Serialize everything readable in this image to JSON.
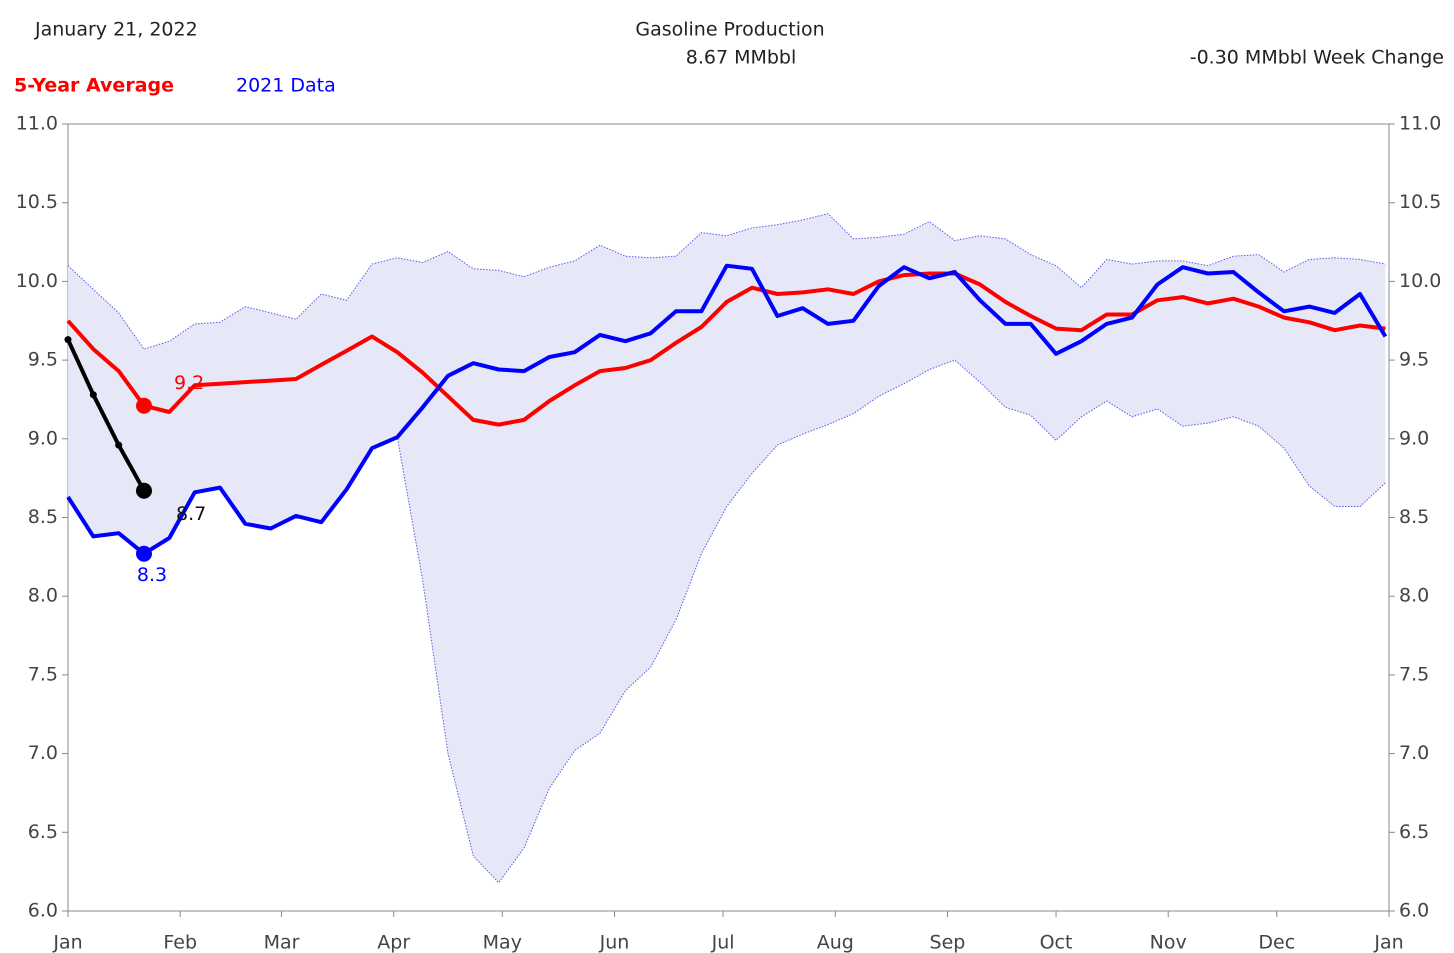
{
  "chart_data": {
    "type": "line",
    "date": "January 21, 2022",
    "title": "Gasoline Production",
    "subtitle": "8.67 MMbbl",
    "annotation": "-0.30 MMbbl Week Change",
    "xlim": [
      0,
      365
    ],
    "xticks": [
      {
        "value": 0,
        "label": "Jan"
      },
      {
        "value": 31,
        "label": "Feb"
      },
      {
        "value": 59,
        "label": "Mar"
      },
      {
        "value": 90,
        "label": "Apr"
      },
      {
        "value": 120,
        "label": "May"
      },
      {
        "value": 151,
        "label": "Jun"
      },
      {
        "value": 181,
        "label": "Jul"
      },
      {
        "value": 212,
        "label": "Aug"
      },
      {
        "value": 243,
        "label": "Sep"
      },
      {
        "value": 273,
        "label": "Oct"
      },
      {
        "value": 304,
        "label": "Nov"
      },
      {
        "value": 334,
        "label": "Dec"
      },
      {
        "value": 365,
        "label": "Jan"
      }
    ],
    "ylim": [
      6,
      11
    ],
    "yticks": [
      {
        "value": 6,
        "label": "6.0"
      },
      {
        "value": 6.5,
        "label": "6.5"
      },
      {
        "value": 7,
        "label": "7.0"
      },
      {
        "value": 7.5,
        "label": "7.5"
      },
      {
        "value": 8,
        "label": "8.0"
      },
      {
        "value": 8.5,
        "label": "8.5"
      },
      {
        "value": 9,
        "label": "9.0"
      },
      {
        "value": 9.5,
        "label": "9.5"
      },
      {
        "value": 10,
        "label": "10.0"
      },
      {
        "value": 10.5,
        "label": "10.5"
      },
      {
        "value": 11,
        "label": "11.0"
      }
    ],
    "x": [
      0,
      7,
      14,
      21,
      28,
      35,
      42,
      49,
      56,
      63,
      70,
      77,
      84,
      91,
      98,
      105,
      112,
      119,
      126,
      133,
      140,
      147,
      154,
      161,
      168,
      175,
      182,
      189,
      196,
      203,
      210,
      217,
      224,
      231,
      238,
      245,
      252,
      259,
      266,
      273,
      280,
      287,
      294,
      301,
      308,
      315,
      322,
      329,
      336,
      343,
      350,
      357,
      364
    ],
    "range": {
      "color": "#e6e8f7",
      "line_color": "#5a5ae6",
      "upper": [
        10.1,
        9.95,
        9.8,
        9.57,
        9.62,
        9.73,
        9.74,
        9.84,
        9.8,
        9.76,
        9.92,
        9.88,
        10.11,
        10.15,
        10.12,
        10.19,
        10.08,
        10.07,
        10.03,
        10.09,
        10.13,
        10.23,
        10.16,
        10.15,
        10.16,
        10.31,
        10.29,
        10.34,
        10.36,
        10.39,
        10.43,
        10.27,
        10.28,
        10.3,
        10.38,
        10.26,
        10.29,
        10.27,
        10.17,
        10.1,
        9.96,
        10.14,
        10.11,
        10.13,
        10.13,
        10.1,
        10.16,
        10.17,
        10.06,
        10.14,
        10.15,
        10.14,
        10.11
      ],
      "lower": [
        8.63,
        8.38,
        8.4,
        8.27,
        8.37,
        8.66,
        8.69,
        8.46,
        8.43,
        8.51,
        8.47,
        8.68,
        8.94,
        9.01,
        8.1,
        7.0,
        6.35,
        6.18,
        6.4,
        6.78,
        7.02,
        7.13,
        7.4,
        7.55,
        7.85,
        8.27,
        8.57,
        8.78,
        8.96,
        9.03,
        9.09,
        9.16,
        9.27,
        9.35,
        9.44,
        9.5,
        9.36,
        9.2,
        9.15,
        8.99,
        9.14,
        9.24,
        9.14,
        9.19,
        9.08,
        9.1,
        9.14,
        9.08,
        8.94,
        8.7,
        8.57,
        8.57,
        8.72
      ]
    },
    "series": [
      {
        "name": "5-Year Average",
        "color": "#ff0000",
        "values": [
          9.75,
          9.57,
          9.43,
          9.21,
          9.17,
          9.34,
          9.35,
          9.36,
          9.37,
          9.38,
          9.47,
          9.56,
          9.65,
          9.55,
          9.42,
          9.27,
          9.12,
          9.09,
          9.12,
          9.24,
          9.34,
          9.43,
          9.45,
          9.5,
          9.61,
          9.71,
          9.87,
          9.96,
          9.92,
          9.93,
          9.95,
          9.92,
          10.0,
          10.04,
          10.05,
          10.05,
          9.98,
          9.87,
          9.78,
          9.7,
          9.69,
          9.79,
          9.79,
          9.88,
          9.9,
          9.86,
          9.89,
          9.84,
          9.77,
          9.74,
          9.69,
          9.72,
          9.7
        ],
        "value_labels": [
          null,
          null,
          null,
          "9.2",
          null,
          null,
          null,
          null,
          null,
          null,
          null,
          null,
          null,
          null,
          null,
          null,
          null,
          null,
          null,
          null,
          null,
          null,
          null,
          null,
          null,
          null,
          null,
          null,
          null,
          null,
          null,
          null,
          null,
          null,
          null,
          null,
          null,
          null,
          null,
          null,
          null,
          null,
          null,
          null,
          null,
          null,
          null,
          null,
          null,
          null,
          null,
          null,
          null
        ]
      },
      {
        "name": "2021 Data",
        "color": "#0000ff",
        "values": [
          8.63,
          8.38,
          8.4,
          8.27,
          8.37,
          8.66,
          8.69,
          8.46,
          8.43,
          8.51,
          8.47,
          8.68,
          8.94,
          9.01,
          9.2,
          9.4,
          9.48,
          9.44,
          9.43,
          9.52,
          9.55,
          9.66,
          9.62,
          9.67,
          9.81,
          9.81,
          10.1,
          10.08,
          9.78,
          9.83,
          9.73,
          9.75,
          9.97,
          10.09,
          10.02,
          10.06,
          9.88,
          9.73,
          9.73,
          9.54,
          9.62,
          9.73,
          9.77,
          9.98,
          10.09,
          10.05,
          10.06,
          9.93,
          9.81,
          9.84,
          9.8,
          9.92,
          9.65
        ],
        "value_labels": [
          null,
          null,
          null,
          "8.3",
          null,
          null,
          null,
          null,
          null,
          null,
          null,
          null,
          null,
          null,
          null,
          null,
          null,
          null,
          null,
          null,
          null,
          null,
          null,
          null,
          null,
          null,
          null,
          null,
          null,
          null,
          null,
          null,
          null,
          null,
          null,
          null,
          null,
          null,
          null,
          null,
          null,
          null,
          null,
          null,
          null,
          null,
          null,
          null,
          null,
          null,
          null,
          null,
          null
        ]
      },
      {
        "color": "#000000",
        "values": [
          9.63,
          9.28,
          8.96,
          8.67,
          null,
          null,
          null,
          null,
          null,
          null,
          null,
          null,
          null,
          null,
          null,
          null,
          null,
          null,
          null,
          null,
          null,
          null,
          null,
          null,
          null,
          null,
          null,
          null,
          null,
          null,
          null,
          null,
          null,
          null,
          null,
          null,
          null,
          null,
          null,
          null,
          null,
          null,
          null,
          null,
          null,
          null,
          null,
          null,
          null,
          null,
          null,
          null,
          null
        ],
        "value_labels": [
          null,
          null,
          null,
          "8.7",
          null,
          null,
          null,
          null,
          null,
          null,
          null,
          null,
          null,
          null,
          null,
          null,
          null,
          null,
          null,
          null,
          null,
          null,
          null,
          null,
          null,
          null,
          null,
          null,
          null,
          null,
          null,
          null,
          null,
          null,
          null,
          null,
          null,
          null,
          null,
          null,
          null,
          null,
          null,
          null,
          null,
          null,
          null,
          null,
          null,
          null,
          null,
          null,
          null
        ]
      }
    ]
  }
}
